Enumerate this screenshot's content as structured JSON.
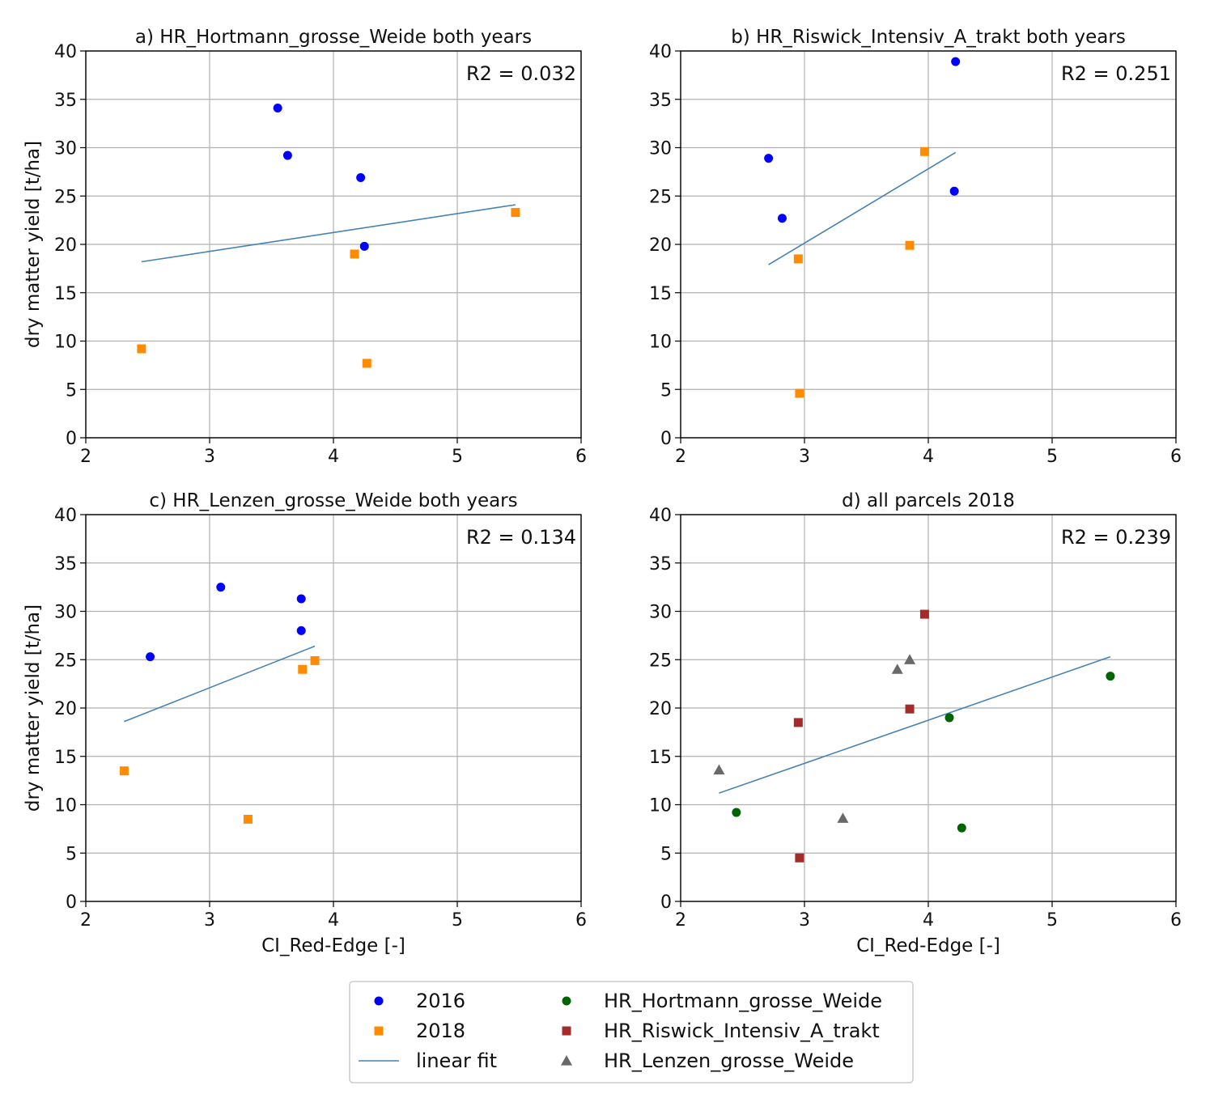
{
  "colors": {
    "y2016": "#0000ff",
    "y2018": "#ff8c00",
    "fit": "#4682b4",
    "hortmann": "#006400",
    "riswick": "#a52a2a",
    "lenzen": "#696969",
    "grid": "#b0b0b0"
  },
  "chart_data": [
    {
      "type": "scatter",
      "panel": "a",
      "title": "a) HR_Hortmann_grosse_Weide both years",
      "xlabel": "",
      "ylabel": "dry matter yield [t/ha]",
      "xlim": [
        2,
        6
      ],
      "ylim": [
        0,
        40
      ],
      "xticks": [
        2,
        3,
        4,
        5,
        6
      ],
      "yticks": [
        0,
        5,
        10,
        15,
        20,
        25,
        30,
        35,
        40
      ],
      "grid": true,
      "annotation": "R2 = 0.032",
      "series": [
        {
          "name": "2016",
          "marker": "circle",
          "color": "y2016",
          "points": [
            [
              3.55,
              34.1
            ],
            [
              3.63,
              29.2
            ],
            [
              4.22,
              26.9
            ],
            [
              4.25,
              19.8
            ]
          ]
        },
        {
          "name": "2018",
          "marker": "square",
          "color": "y2018",
          "points": [
            [
              2.45,
              9.2
            ],
            [
              4.17,
              19.0
            ],
            [
              4.27,
              7.7
            ],
            [
              5.47,
              23.3
            ]
          ]
        }
      ],
      "fit": [
        [
          2.45,
          18.2
        ],
        [
          5.47,
          24.1
        ]
      ]
    },
    {
      "type": "scatter",
      "panel": "b",
      "title": "b) HR_Riswick_Intensiv_A_trakt both years",
      "xlabel": "",
      "ylabel": "",
      "xlim": [
        2,
        6
      ],
      "ylim": [
        0,
        40
      ],
      "xticks": [
        2,
        3,
        4,
        5,
        6
      ],
      "yticks": [
        0,
        5,
        10,
        15,
        20,
        25,
        30,
        35,
        40
      ],
      "grid": true,
      "annotation": "R2 = 0.251",
      "series": [
        {
          "name": "2016",
          "marker": "circle",
          "color": "y2016",
          "points": [
            [
              2.71,
              28.9
            ],
            [
              2.82,
              22.7
            ],
            [
              4.21,
              25.5
            ],
            [
              4.22,
              38.9
            ]
          ]
        },
        {
          "name": "2018",
          "marker": "square",
          "color": "y2018",
          "points": [
            [
              2.95,
              18.5
            ],
            [
              2.96,
              4.6
            ],
            [
              3.85,
              19.9
            ],
            [
              3.97,
              29.6
            ]
          ]
        }
      ],
      "fit": [
        [
          2.71,
          17.9
        ],
        [
          4.22,
          29.5
        ]
      ]
    },
    {
      "type": "scatter",
      "panel": "c",
      "title": "c) HR_Lenzen_grosse_Weide both years",
      "xlabel": "CI_Red-Edge [-]",
      "ylabel": "dry matter yield [t/ha]",
      "xlim": [
        2,
        6
      ],
      "ylim": [
        0,
        40
      ],
      "xticks": [
        2,
        3,
        4,
        5,
        6
      ],
      "yticks": [
        0,
        5,
        10,
        15,
        20,
        25,
        30,
        35,
        40
      ],
      "grid": true,
      "annotation": "R2 = 0.134",
      "series": [
        {
          "name": "2016",
          "marker": "circle",
          "color": "y2016",
          "points": [
            [
              2.52,
              25.3
            ],
            [
              3.09,
              32.5
            ],
            [
              3.74,
              31.3
            ],
            [
              3.74,
              28.0
            ]
          ]
        },
        {
          "name": "2018",
          "marker": "square",
          "color": "y2018",
          "points": [
            [
              2.31,
              13.5
            ],
            [
              3.31,
              8.5
            ],
            [
              3.75,
              24.0
            ],
            [
              3.85,
              24.9
            ]
          ]
        }
      ],
      "fit": [
        [
          2.31,
          18.6
        ],
        [
          3.85,
          26.4
        ]
      ]
    },
    {
      "type": "scatter",
      "panel": "d",
      "title": "d) all parcels 2018",
      "xlabel": "CI_Red-Edge [-]",
      "ylabel": "",
      "xlim": [
        2,
        6
      ],
      "ylim": [
        0,
        40
      ],
      "xticks": [
        2,
        3,
        4,
        5,
        6
      ],
      "yticks": [
        0,
        5,
        10,
        15,
        20,
        25,
        30,
        35,
        40
      ],
      "grid": true,
      "annotation": "R2 = 0.239",
      "series": [
        {
          "name": "HR_Hortmann_grosse_Weide",
          "marker": "circle",
          "color": "hortmann",
          "points": [
            [
              2.45,
              9.2
            ],
            [
              4.17,
              19.0
            ],
            [
              4.27,
              7.6
            ],
            [
              5.47,
              23.3
            ]
          ]
        },
        {
          "name": "HR_Riswick_Intensiv_A_trakt",
          "marker": "square",
          "color": "riswick",
          "points": [
            [
              2.95,
              18.5
            ],
            [
              2.96,
              4.5
            ],
            [
              3.85,
              19.9
            ],
            [
              3.97,
              29.7
            ]
          ]
        },
        {
          "name": "HR_Lenzen_grosse_Weide",
          "marker": "triangle",
          "color": "lenzen",
          "points": [
            [
              2.31,
              13.6
            ],
            [
              3.31,
              8.6
            ],
            [
              3.75,
              24.0
            ],
            [
              3.85,
              25.0
            ]
          ]
        }
      ],
      "fit": [
        [
          2.31,
          11.2
        ],
        [
          5.47,
          25.3
        ]
      ]
    }
  ],
  "legend": {
    "placement": "bottom-center",
    "items": [
      {
        "label": "2016",
        "marker": "circle",
        "color": "y2016"
      },
      {
        "label": "2018",
        "marker": "square",
        "color": "y2018"
      },
      {
        "label": "linear fit",
        "marker": "line",
        "color": "fit"
      },
      {
        "label": "HR_Hortmann_grosse_Weide",
        "marker": "circle",
        "color": "hortmann"
      },
      {
        "label": "HR_Riswick_Intensiv_A_trakt",
        "marker": "square",
        "color": "riswick"
      },
      {
        "label": "HR_Lenzen_grosse_Weide",
        "marker": "triangle",
        "color": "lenzen"
      }
    ]
  }
}
